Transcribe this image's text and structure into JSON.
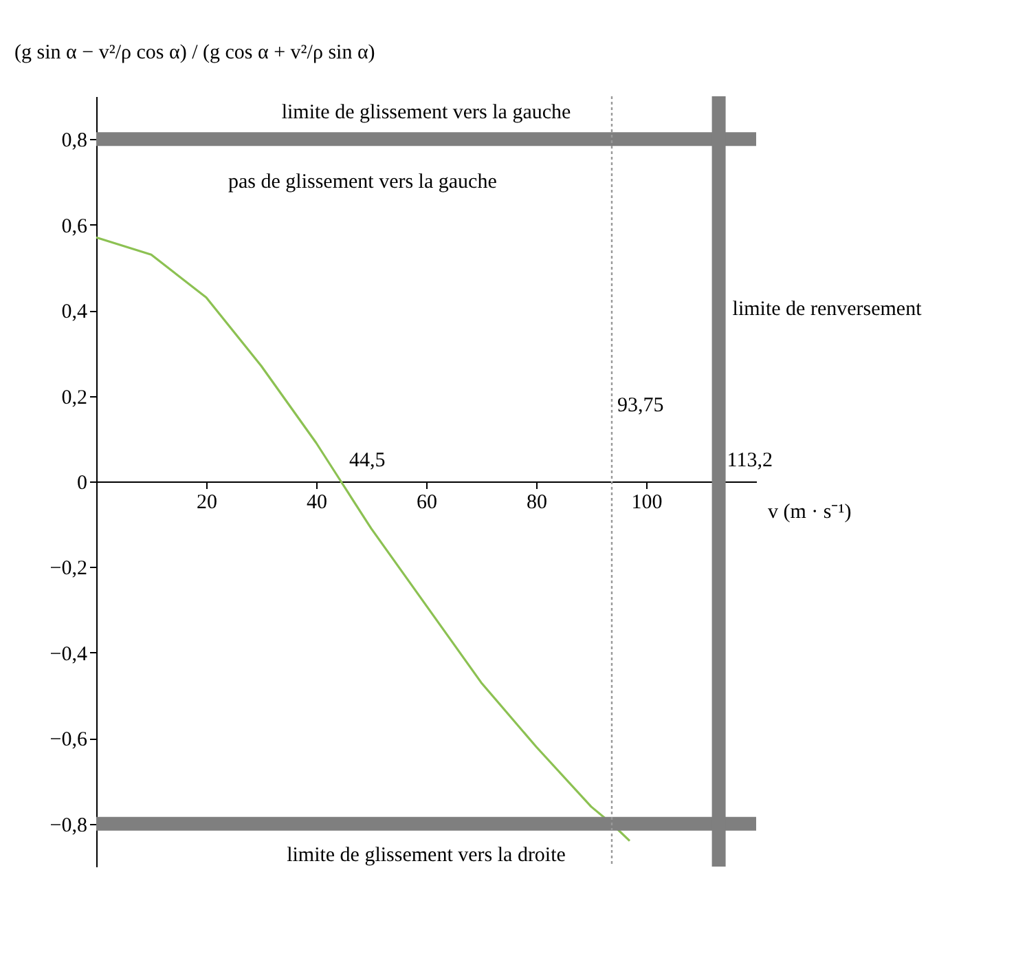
{
  "chart_data": {
    "type": "line",
    "ylabel": "(g sin α − v²/ρ cos α) / (g cos α + v²/ρ sin α)",
    "xlabel": "v (m · s⁻¹)",
    "xlim": [
      0,
      120
    ],
    "ylim": [
      -0.9,
      0.9
    ],
    "xticks": [
      20,
      40,
      60,
      80,
      100
    ],
    "yticks": [
      {
        "value": -0.8,
        "label": "−0,8"
      },
      {
        "value": -0.6,
        "label": "−0,6"
      },
      {
        "value": -0.4,
        "label": "−0,4"
      },
      {
        "value": -0.2,
        "label": "−0,2"
      },
      {
        "value": 0,
        "label": "0"
      },
      {
        "value": 0.2,
        "label": "0,2"
      },
      {
        "value": 0.4,
        "label": "0,4"
      },
      {
        "value": 0.6,
        "label": "0,6"
      },
      {
        "value": 0.8,
        "label": "0,8"
      }
    ],
    "grid": false,
    "x": [
      0,
      10,
      20,
      30,
      40,
      44.5,
      50,
      60,
      70,
      80,
      90,
      93.75,
      97
    ],
    "series": [
      {
        "color": "#8cc152",
        "values": [
          0.57,
          0.53,
          0.43,
          0.27,
          0.09,
          0,
          -0.11,
          -0.29,
          -0.47,
          -0.62,
          -0.76,
          -0.8,
          -0.84
        ]
      }
    ],
    "ref_lines": [
      {
        "axis": "y",
        "value": 0.8,
        "label": "limite de glissement vers la gauche",
        "color": "#7f7f7f",
        "line_style": "solid"
      },
      {
        "axis": "y",
        "value": -0.8,
        "label": "limite de glissement vers la droite",
        "color": "#7f7f7f",
        "line_style": "solid"
      },
      {
        "axis": "x",
        "value": 113.2,
        "label": "limite de renversement",
        "color": "#7f7f7f",
        "line_style": "solid"
      },
      {
        "axis": "x",
        "value": 93.75,
        "label": "93,75",
        "color": "#999999",
        "line_style": "dotted"
      }
    ],
    "annotations": [
      {
        "text": "44,5",
        "x": 44.5,
        "y": 0
      },
      {
        "text": "113,2",
        "x": 113.2,
        "y": 0
      },
      "pas de glissement vers la gauche"
    ]
  }
}
